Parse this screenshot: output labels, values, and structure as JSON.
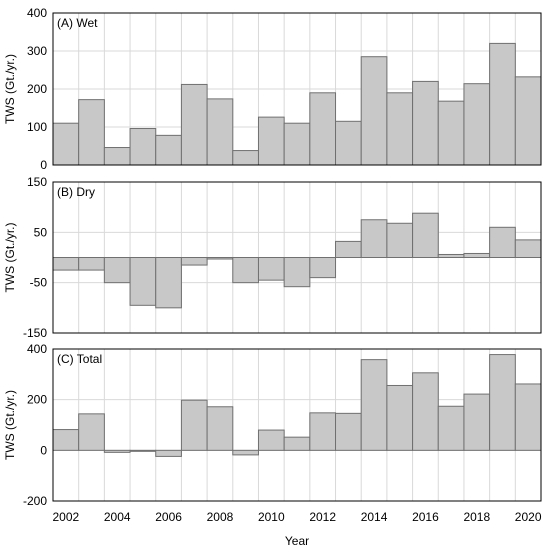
{
  "chart_data": [
    {
      "type": "bar",
      "panel_label": "(A) Wet",
      "ylabel": "TWS (Gt./yr.)",
      "xlabel": "",
      "ylim": [
        0,
        400
      ],
      "yticks": [
        0,
        100,
        200,
        300,
        400
      ],
      "grid": true,
      "categories": [
        "2002",
        "2003",
        "2004",
        "2005",
        "2006",
        "2007",
        "2008",
        "2009",
        "2010",
        "2011",
        "2012",
        "2013",
        "2014",
        "2015",
        "2016",
        "2017",
        "2018",
        "2019",
        "2020"
      ],
      "values": [
        110,
        172,
        46,
        96,
        78,
        212,
        174,
        38,
        126,
        110,
        190,
        115,
        285,
        190,
        220,
        168,
        214,
        320,
        232
      ]
    },
    {
      "type": "bar",
      "panel_label": "(B) Dry",
      "ylabel": "TWS (Gt./yr.)",
      "xlabel": "",
      "ylim": [
        -150,
        150
      ],
      "yticks": [
        -150,
        -50,
        50,
        150
      ],
      "grid": true,
      "categories": [
        "2002",
        "2003",
        "2004",
        "2005",
        "2006",
        "2007",
        "2008",
        "2009",
        "2010",
        "2011",
        "2012",
        "2013",
        "2014",
        "2015",
        "2016",
        "2017",
        "2018",
        "2019",
        "2020"
      ],
      "values": [
        -25,
        -25,
        -50,
        -95,
        -100,
        -15,
        -3,
        -50,
        -45,
        -58,
        -40,
        32,
        75,
        68,
        88,
        6,
        8,
        60,
        35
      ]
    },
    {
      "type": "bar",
      "panel_label": "(C) Total",
      "ylabel": "TWS (Gt./yr.)",
      "xlabel": "Year",
      "ylim": [
        -200,
        400
      ],
      "yticks": [
        -200,
        0,
        200,
        400
      ],
      "grid": true,
      "categories": [
        "2002",
        "2003",
        "2004",
        "2005",
        "2006",
        "2007",
        "2008",
        "2009",
        "2010",
        "2011",
        "2012",
        "2013",
        "2014",
        "2015",
        "2016",
        "2017",
        "2018",
        "2019",
        "2020"
      ],
      "xticks": [
        "2002",
        "2004",
        "2006",
        "2008",
        "2010",
        "2012",
        "2014",
        "2016",
        "2018",
        "2020"
      ],
      "values": [
        82,
        144,
        -8,
        -4,
        -24,
        198,
        172,
        -18,
        80,
        52,
        148,
        146,
        358,
        256,
        306,
        174,
        222,
        378,
        262
      ]
    }
  ],
  "colors": {
    "bar_fill": "#c8c8c8",
    "bar_stroke": "#707070",
    "grid": "#d9d9d9",
    "frame": "#000000"
  }
}
